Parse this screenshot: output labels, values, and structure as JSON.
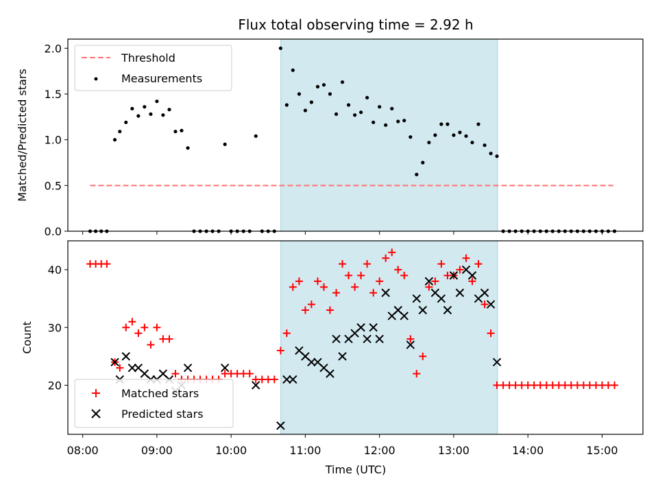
{
  "chart_data": [
    {
      "type": "scatter",
      "title": "Flux total observing time = 2.92 h",
      "ylabel": "Matched/Predicted stars",
      "xlabel": "",
      "xlim": [
        7.8,
        15.55
      ],
      "ylim": [
        0,
        2.1
      ],
      "xticks": [
        8,
        9,
        10,
        11,
        12,
        13,
        14,
        15
      ],
      "yticks": [
        0.0,
        0.5,
        1.0,
        1.5,
        2.0
      ],
      "ytick_labels": [
        "0.0",
        "0.5",
        "1.0",
        "1.5",
        "2.0"
      ],
      "shaded_region": [
        10.67,
        13.59
      ],
      "shaded_color": "#d3e9f0",
      "legend": {
        "position": "top-left",
        "threshold_label": "Threshold",
        "measurements_label": "Measurements"
      },
      "threshold": {
        "value": 0.5,
        "x": [
          8.1,
          15.15
        ],
        "color": "#ff6f6f"
      },
      "measurements": {
        "color": "#000000",
        "x": [
          8.1,
          8.175,
          8.25,
          8.325,
          8.433,
          8.5,
          8.583,
          8.667,
          8.75,
          8.833,
          8.917,
          9.0,
          9.083,
          9.167,
          9.25,
          9.333,
          9.417,
          9.5,
          9.583,
          9.667,
          9.75,
          9.833,
          9.917,
          10.0,
          10.083,
          10.167,
          10.25,
          10.333,
          10.417,
          10.5,
          10.583,
          10.667,
          10.75,
          10.833,
          10.917,
          11.0,
          11.083,
          11.167,
          11.25,
          11.333,
          11.417,
          11.5,
          11.583,
          11.667,
          11.75,
          11.833,
          11.917,
          12.0,
          12.083,
          12.167,
          12.25,
          12.333,
          12.417,
          12.5,
          12.583,
          12.667,
          12.75,
          12.833,
          12.917,
          13.0,
          13.083,
          13.167,
          13.25,
          13.333,
          13.417,
          13.5,
          13.583,
          13.667,
          13.75,
          13.833,
          13.917,
          14.0,
          14.083,
          14.167,
          14.25,
          14.333,
          14.417,
          14.5,
          14.583,
          14.667,
          14.75,
          14.833,
          14.917,
          15.0,
          15.083,
          15.167
        ],
        "y": [
          0,
          0,
          0,
          0,
          1.0,
          1.09,
          1.19,
          1.34,
          1.26,
          1.36,
          1.28,
          1.42,
          1.27,
          1.33,
          1.09,
          1.1,
          0.91,
          0,
          0,
          0,
          0,
          0,
          0.95,
          0,
          0,
          0,
          0,
          1.04,
          0,
          0,
          0,
          2.0,
          1.38,
          1.76,
          1.5,
          1.32,
          1.41,
          1.58,
          1.6,
          1.5,
          1.28,
          1.63,
          1.38,
          1.27,
          1.3,
          1.46,
          1.19,
          1.36,
          1.16,
          1.34,
          1.2,
          1.21,
          1.03,
          0.62,
          0.75,
          0.97,
          1.05,
          1.17,
          1.17,
          1.05,
          1.08,
          1.04,
          0.97,
          1.17,
          0.94,
          0.85,
          0.82,
          0,
          0,
          0,
          0,
          0,
          0,
          0,
          0,
          0,
          0,
          0,
          0,
          0,
          0,
          0,
          0,
          0,
          0,
          0
        ]
      }
    },
    {
      "type": "scatter",
      "title": "",
      "ylabel": "Count",
      "xlabel": "Time (UTC)",
      "xlim": [
        7.8,
        15.55
      ],
      "ylim": [
        11.5,
        45
      ],
      "xticks": [
        8,
        9,
        10,
        11,
        12,
        13,
        14,
        15
      ],
      "xtick_labels": [
        "08:00",
        "09:00",
        "10:00",
        "11:00",
        "12:00",
        "13:00",
        "14:00",
        "15:00"
      ],
      "yticks": [
        20,
        30,
        40
      ],
      "ytick_labels": [
        "20",
        "30",
        "40"
      ],
      "shaded_region": [
        10.67,
        13.59
      ],
      "shaded_color": "#d3e9f0",
      "legend": {
        "position": "bottom-left",
        "matched_label": "Matched stars",
        "predicted_label": "Predicted stars"
      },
      "series": [
        {
          "name": "Matched stars",
          "marker": "plus",
          "color": "#ff0000",
          "x": [
            8.1,
            8.175,
            8.25,
            8.325,
            8.433,
            8.5,
            8.583,
            8.667,
            8.75,
            8.833,
            8.917,
            9.0,
            9.083,
            9.167,
            9.25,
            9.333,
            9.417,
            9.5,
            9.583,
            9.667,
            9.75,
            9.833,
            9.917,
            10.0,
            10.083,
            10.167,
            10.25,
            10.333,
            10.417,
            10.5,
            10.583,
            10.667,
            10.75,
            10.833,
            10.917,
            11.0,
            11.083,
            11.167,
            11.25,
            11.333,
            11.417,
            11.5,
            11.583,
            11.667,
            11.75,
            11.833,
            11.917,
            12.0,
            12.083,
            12.167,
            12.25,
            12.333,
            12.417,
            12.5,
            12.583,
            12.667,
            12.75,
            12.833,
            12.917,
            13.0,
            13.083,
            13.167,
            13.25,
            13.333,
            13.417,
            13.5,
            13.583,
            13.667,
            13.75,
            13.833,
            13.917,
            14.0,
            14.083,
            14.167,
            14.25,
            14.333,
            14.417,
            14.5,
            14.583,
            14.667,
            14.75,
            14.833,
            14.917,
            15.0,
            15.083,
            15.167
          ],
          "y": [
            41,
            41,
            41,
            41,
            24,
            23,
            30,
            31,
            29,
            30,
            27,
            30,
            28,
            28,
            22,
            21,
            21,
            21,
            21,
            21,
            21,
            21,
            22,
            22,
            22,
            22,
            22,
            21,
            21,
            21,
            21,
            26,
            29,
            37,
            38,
            33,
            34,
            38,
            37,
            33,
            36,
            41,
            39,
            37,
            39,
            41,
            36,
            38,
            42,
            43,
            40,
            39,
            28,
            22,
            25,
            37,
            38,
            41,
            39,
            39,
            40,
            42,
            38,
            41,
            34,
            29,
            20,
            20,
            20,
            20,
            20,
            20,
            20,
            20,
            20,
            20,
            20,
            20,
            20,
            20,
            20,
            20,
            20,
            20,
            20,
            20
          ]
        },
        {
          "name": "Predicted stars",
          "marker": "x",
          "color": "#000000",
          "x": [
            8.433,
            8.5,
            8.583,
            8.667,
            8.75,
            8.833,
            8.917,
            9.0,
            9.083,
            9.167,
            9.25,
            9.333,
            9.417,
            9.917,
            10.333,
            10.667,
            10.75,
            10.833,
            10.917,
            11.0,
            11.083,
            11.167,
            11.25,
            11.333,
            11.417,
            11.5,
            11.583,
            11.667,
            11.75,
            11.833,
            11.917,
            12.0,
            12.083,
            12.167,
            12.25,
            12.333,
            12.417,
            12.5,
            12.583,
            12.667,
            12.75,
            12.833,
            12.917,
            13.0,
            13.083,
            13.167,
            13.25,
            13.333,
            13.417,
            13.5,
            13.583
          ],
          "y": [
            24,
            21,
            25,
            23,
            23,
            22,
            21,
            21,
            22,
            21,
            19,
            20,
            23,
            23,
            20,
            13,
            21,
            21,
            26,
            25,
            24,
            24,
            23,
            22,
            28,
            25,
            28,
            29,
            30,
            28,
            30,
            28,
            36,
            32,
            33,
            32,
            27,
            35,
            33,
            38,
            36,
            35,
            33,
            39,
            36,
            40,
            39,
            35,
            36,
            34,
            24
          ]
        }
      ]
    }
  ]
}
